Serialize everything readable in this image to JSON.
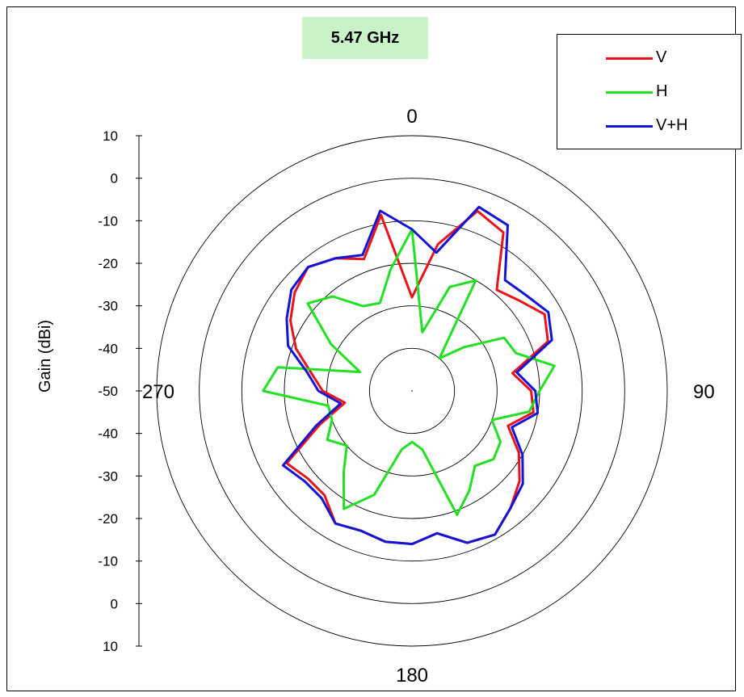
{
  "chart_data": {
    "type": "polar",
    "title": "5.47 GHz",
    "ylabel": "Gain (dBi)",
    "rlim": [
      -50,
      10
    ],
    "r_ticks": [
      -40,
      -30,
      -20,
      -10,
      0,
      10
    ],
    "gain_scale_labels": [
      "10",
      "0",
      "-10",
      "-20",
      "-30",
      "-40",
      "-50",
      "-40",
      "-30",
      "-20",
      "-10",
      "0",
      "10"
    ],
    "angle_labels": [
      {
        "angle": 0,
        "label": "0"
      },
      {
        "angle": 90,
        "label": "90"
      },
      {
        "angle": 180,
        "label": "180"
      },
      {
        "angle": 270,
        "label": "270"
      }
    ],
    "legend_placement": "top-right",
    "angles_deg": [
      0,
      10,
      20,
      30,
      40,
      50,
      60,
      70,
      80,
      90,
      100,
      110,
      120,
      130,
      140,
      150,
      160,
      170,
      180,
      190,
      200,
      210,
      220,
      230,
      240,
      250,
      260,
      270,
      280,
      290,
      300,
      310,
      320,
      330,
      340,
      350
    ],
    "series": [
      {
        "name": "V",
        "color": "#e8141b",
        "values": [
          -28,
          -15,
          -5,
          -7,
          -19,
          -17,
          -14,
          -16,
          -26,
          -22,
          -21,
          -26,
          -21,
          -17,
          -14,
          -11,
          -12,
          -16,
          -14,
          -14,
          -15,
          -14,
          -18,
          -18,
          -16,
          -27,
          -34,
          -29,
          -26,
          -21,
          -17,
          -14,
          -12,
          -14,
          -17,
          -8
        ]
      },
      {
        "name": "H",
        "color": "#22e022",
        "values": [
          -12,
          -36,
          -24,
          -20,
          -40,
          -34,
          -25,
          -24,
          -16,
          -20,
          -22,
          -30,
          -26,
          -25,
          -27,
          -23,
          -19,
          -36,
          -38,
          -36,
          -24,
          -18,
          -25,
          -30,
          -27,
          -30,
          -30,
          -15,
          -18,
          -37,
          -28,
          -18,
          -21,
          -27,
          -28,
          -21
        ]
      },
      {
        "name": "V+H",
        "color": "#1414d6",
        "values": [
          -12,
          -17,
          -4,
          -5,
          -16,
          -15,
          -13,
          -15,
          -25,
          -21,
          -20,
          -25,
          -20,
          -16,
          -14,
          -11,
          -12,
          -16,
          -14,
          -14,
          -15,
          -14,
          -17,
          -17,
          -15,
          -26,
          -33,
          -28,
          -25,
          -19,
          -16,
          -13,
          -12,
          -14,
          -16,
          -7
        ]
      }
    ]
  }
}
